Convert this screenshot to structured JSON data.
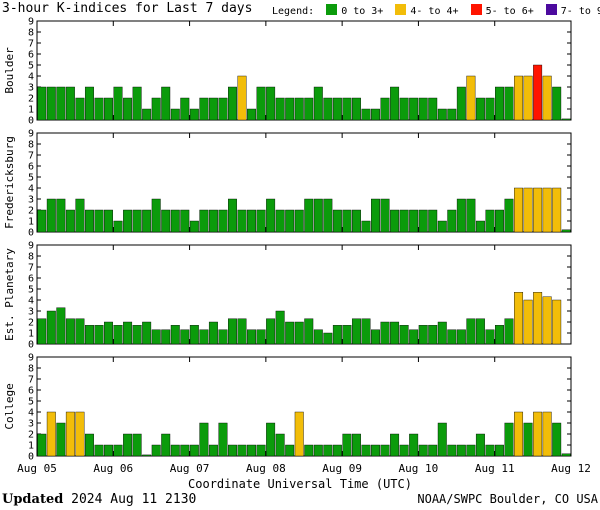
{
  "title": "3-hour K-indices for Last 7 days",
  "legend": {
    "label": "Legend:",
    "items": [
      {
        "label": "0 to 3+",
        "color": "#0b9b0b"
      },
      {
        "label": "4- to 4+",
        "color": "#f2bd09"
      },
      {
        "label": "5- to 6+",
        "color": "#ff1400"
      },
      {
        "label": "7- to 9",
        "color": "#4c0a9e"
      }
    ]
  },
  "xaxis_title": "Coordinate Universal Time (UTC)",
  "footer": {
    "updated_label": "Updated",
    "updated_value": "2024 Aug 11 2130",
    "source": "NOAA/SWPC Boulder, CO USA"
  },
  "chart_data": [
    {
      "type": "bar",
      "panel": "Boulder",
      "ylabel": "Boulder",
      "ylim": [
        0,
        9
      ],
      "yticks": [
        0,
        1,
        2,
        3,
        4,
        5,
        6,
        7,
        8,
        9
      ],
      "x_ticks": [
        "Aug 05",
        "Aug 06",
        "Aug 07",
        "Aug 08",
        "Aug 09",
        "Aug 10",
        "Aug 11",
        "Aug 12"
      ],
      "interval_hours": 3,
      "values": [
        3,
        3,
        3,
        3,
        2,
        3,
        2,
        2,
        3,
        2,
        3,
        1,
        2,
        3,
        1,
        2,
        1,
        2,
        2,
        2,
        3,
        4,
        1,
        3,
        3,
        2,
        2,
        2,
        2,
        3,
        2,
        2,
        2,
        2,
        1,
        1,
        2,
        3,
        2,
        2,
        2,
        2,
        1,
        1,
        3,
        4,
        2,
        2,
        3,
        3,
        4,
        4,
        5,
        4,
        3,
        0.1
      ]
    },
    {
      "type": "bar",
      "panel": "Fredericksburg",
      "ylabel": "Fredericksburg",
      "ylim": [
        0,
        9
      ],
      "yticks": [
        0,
        1,
        2,
        3,
        4,
        5,
        6,
        7,
        8,
        9
      ],
      "x_ticks": [
        "Aug 05",
        "Aug 06",
        "Aug 07",
        "Aug 08",
        "Aug 09",
        "Aug 10",
        "Aug 11",
        "Aug 12"
      ],
      "interval_hours": 3,
      "values": [
        2,
        3,
        3,
        2,
        3,
        2,
        2,
        2,
        1,
        2,
        2,
        2,
        3,
        2,
        2,
        2,
        1,
        2,
        2,
        2,
        3,
        2,
        2,
        2,
        3,
        2,
        2,
        2,
        3,
        3,
        3,
        2,
        2,
        2,
        1,
        3,
        3,
        2,
        2,
        2,
        2,
        2,
        1,
        2,
        3,
        3,
        1,
        2,
        2,
        3,
        4,
        4,
        4,
        4,
        4,
        0.2
      ]
    },
    {
      "type": "bar",
      "panel": "Est. Planetary",
      "ylabel": "Est. Planetary",
      "ylim": [
        0,
        9
      ],
      "yticks": [
        0,
        1,
        2,
        3,
        4,
        5,
        6,
        7,
        8,
        9
      ],
      "x_ticks": [
        "Aug 05",
        "Aug 06",
        "Aug 07",
        "Aug 08",
        "Aug 09",
        "Aug 10",
        "Aug 11",
        "Aug 12"
      ],
      "interval_hours": 3,
      "values": [
        2.3,
        3,
        3.3,
        2.3,
        2.3,
        1.7,
        1.7,
        2,
        1.7,
        2,
        1.7,
        2,
        1.3,
        1.3,
        1.7,
        1.3,
        1.7,
        1.3,
        2,
        1.3,
        2.3,
        2.3,
        1.3,
        1.3,
        2.3,
        3,
        2,
        2,
        2.3,
        1.3,
        1,
        1.7,
        1.7,
        2.3,
        2.3,
        1.3,
        2,
        2,
        1.7,
        1.3,
        1.7,
        1.7,
        2,
        1.3,
        1.3,
        2.3,
        2.3,
        1.3,
        1.7,
        2.3,
        4.7,
        4,
        4.7,
        4.3,
        4
      ]
    },
    {
      "type": "bar",
      "panel": "College",
      "ylabel": "College",
      "ylim": [
        0,
        9
      ],
      "yticks": [
        0,
        1,
        2,
        3,
        4,
        5,
        6,
        7,
        8,
        9
      ],
      "x_ticks": [
        "Aug 05",
        "Aug 06",
        "Aug 07",
        "Aug 08",
        "Aug 09",
        "Aug 10",
        "Aug 11",
        "Aug 12"
      ],
      "interval_hours": 3,
      "values": [
        2,
        4,
        3,
        4,
        4,
        2,
        1,
        1,
        1,
        2,
        2,
        0.1,
        1,
        2,
        1,
        1,
        1,
        3,
        1,
        3,
        1,
        1,
        1,
        1,
        3,
        2,
        1,
        4,
        1,
        1,
        1,
        1,
        2,
        2,
        1,
        1,
        1,
        2,
        1,
        2,
        1,
        1,
        3,
        1,
        1,
        1,
        2,
        1,
        1,
        3,
        4,
        3,
        4,
        4,
        3,
        0.2
      ]
    }
  ]
}
